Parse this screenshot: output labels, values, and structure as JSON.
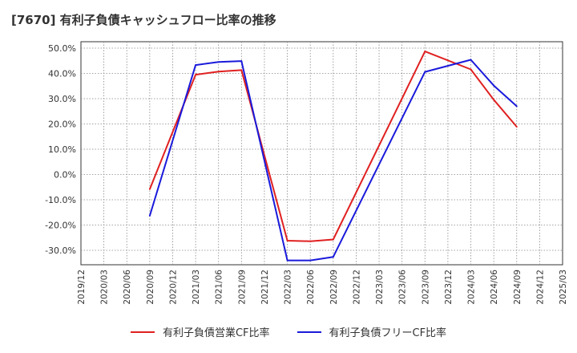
{
  "chart_data": {
    "type": "line",
    "title": "[7670]  有利子負債キャッシュフロー比率の推移",
    "x": [
      "2019/12",
      "2020/03",
      "2020/06",
      "2020/09",
      "2020/12",
      "2021/03",
      "2021/06",
      "2021/09",
      "2021/12",
      "2022/03",
      "2022/06",
      "2022/09",
      "2022/12",
      "2023/03",
      "2023/06",
      "2023/09",
      "2023/12",
      "2024/03",
      "2024/06",
      "2024/09",
      "2024/12",
      "2025/03"
    ],
    "yticks": [
      "50.0%",
      "40.0%",
      "30.0%",
      "20.0%",
      "10.0%",
      "0.0%",
      "-10.0%",
      "-20.0%",
      "-30.0%"
    ],
    "ylim": [
      -36,
      52
    ],
    "grid": true,
    "legend_position": "bottom",
    "series": [
      {
        "name": "有利子負債営業CF比率",
        "color": "#e02020",
        "values": [
          null,
          null,
          null,
          -5.8,
          null,
          39.5,
          40.7,
          41.3,
          null,
          -26.2,
          -26.4,
          -25.7,
          null,
          null,
          null,
          48.7,
          null,
          41.6,
          29.6,
          18.9,
          null,
          null
        ]
      },
      {
        "name": "有利子負債フリーCF比率",
        "color": "#1a1adb",
        "values": [
          null,
          null,
          null,
          -16.3,
          null,
          43.3,
          44.5,
          44.9,
          null,
          -34.0,
          -34.0,
          -32.6,
          null,
          null,
          null,
          40.6,
          null,
          45.4,
          35.2,
          27.0,
          null,
          null
        ]
      }
    ]
  }
}
